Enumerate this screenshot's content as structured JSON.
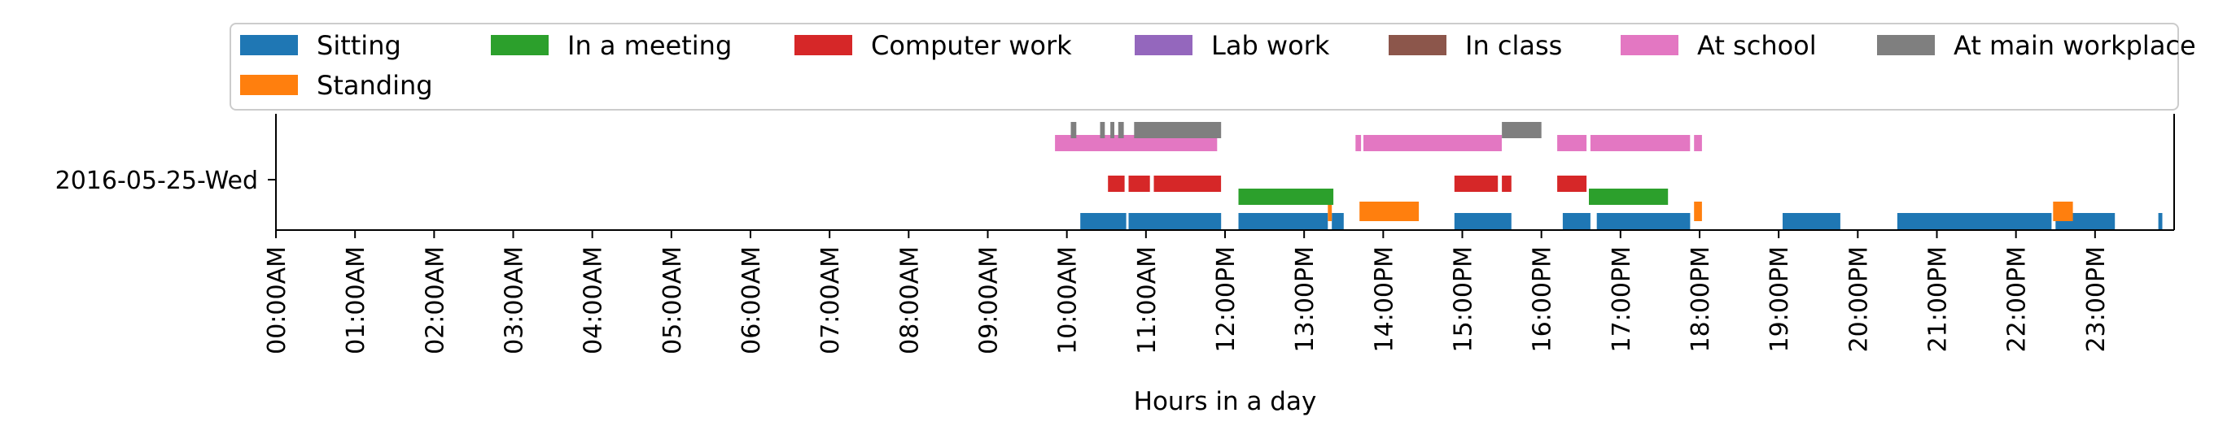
{
  "chart_data": {
    "type": "bar",
    "subtype": "activity-timeline",
    "title": "",
    "xlabel": "Hours in a day",
    "ylabel": "",
    "xlim": [
      0,
      24
    ],
    "x_ticks": [
      "00:00AM",
      "01:00AM",
      "02:00AM",
      "03:00AM",
      "04:00AM",
      "05:00AM",
      "06:00AM",
      "07:00AM",
      "08:00AM",
      "09:00AM",
      "10:00AM",
      "11:00AM",
      "12:00PM",
      "13:00PM",
      "14:00PM",
      "15:00PM",
      "16:00PM",
      "17:00PM",
      "18:00PM",
      "19:00PM",
      "20:00PM",
      "21:00PM",
      "22:00PM",
      "23:00PM"
    ],
    "y_ticks": [
      "2016-05-25-Wed"
    ],
    "grid": false,
    "legend_position": "top, full width, 7 columns",
    "series": [
      {
        "name": "Sitting",
        "color": "#1f77b4",
        "lane": 0,
        "intervals": [
          [
            10.17,
            10.75
          ],
          [
            10.78,
            11.95
          ],
          [
            12.17,
            13.3
          ],
          [
            13.35,
            13.5
          ],
          [
            14.9,
            15.62
          ],
          [
            16.27,
            16.62
          ],
          [
            16.7,
            17.88
          ],
          [
            19.05,
            19.78
          ],
          [
            20.5,
            22.45
          ],
          [
            22.5,
            23.25
          ],
          [
            23.8,
            23.85
          ]
        ]
      },
      {
        "name": "Standing",
        "color": "#ff7f0e",
        "lane": 0.5,
        "intervals": [
          [
            13.3,
            13.35
          ],
          [
            13.7,
            14.45
          ],
          [
            17.93,
            18.03
          ],
          [
            22.47,
            22.72
          ]
        ]
      },
      {
        "name": "In a meeting",
        "color": "#2ca02c",
        "lane": 1,
        "intervals": [
          [
            12.17,
            13.37
          ],
          [
            16.6,
            17.6
          ]
        ]
      },
      {
        "name": "Computer work",
        "color": "#d62728",
        "lane": 2,
        "intervals": [
          [
            10.52,
            10.73
          ],
          [
            10.78,
            11.05
          ],
          [
            11.1,
            11.95
          ],
          [
            14.9,
            15.45
          ],
          [
            15.5,
            15.62
          ],
          [
            16.2,
            16.57
          ]
        ]
      },
      {
        "name": "Lab work",
        "color": "#9467bd",
        "lane": 3,
        "intervals": []
      },
      {
        "name": "In class",
        "color": "#8c564b",
        "lane": 3,
        "intervals": []
      },
      {
        "name": "At school",
        "color": "#e377c2",
        "lane": 3,
        "intervals": [
          [
            9.85,
            11.9
          ],
          [
            13.65,
            13.72
          ],
          [
            13.75,
            15.5
          ],
          [
            16.2,
            16.57
          ],
          [
            16.62,
            17.88
          ],
          [
            17.93,
            18.03
          ]
        ]
      },
      {
        "name": "At main workplace",
        "color": "#7f7f7f",
        "lane": 4,
        "intervals": [
          [
            10.05,
            10.12
          ],
          [
            10.42,
            10.48
          ],
          [
            10.55,
            10.6
          ],
          [
            10.65,
            10.72
          ],
          [
            10.85,
            11.95
          ],
          [
            15.5,
            16.0
          ]
        ]
      }
    ]
  }
}
